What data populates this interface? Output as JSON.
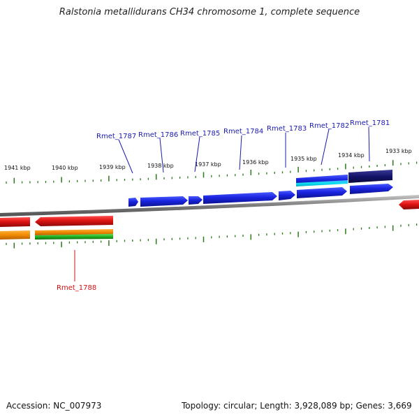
{
  "title": "Ralstonia metallidurans CH34 chromosome 1, complete sequence",
  "accession": "Accession: NC_007973",
  "topology": "Topology: circular; Length: 3,928,089 bp; Genes: 3,669",
  "colors": {
    "backbone": "#8a8a8a",
    "tick": "#2a7a1a",
    "forward_gene": "#1a24e0",
    "reverse_gene": "#e01414",
    "forward_label": "#1a1ab0",
    "reverse_label": "#d01010"
  },
  "scale_labels": [
    "1941 kbp",
    "1940 kbp",
    "1939 kbp",
    "1938 kbp",
    "1937 kbp",
    "1936 kbp",
    "1935 kbp",
    "1934 kbp",
    "1933 kbp"
  ],
  "forward_genes": [
    "Rmet_1787",
    "Rmet_1786",
    "Rmet_1785",
    "Rmet_1784",
    "Rmet_1783",
    "Rmet_1782",
    "Rmet_1781"
  ],
  "reverse_genes": [
    "Rmet_1788"
  ]
}
